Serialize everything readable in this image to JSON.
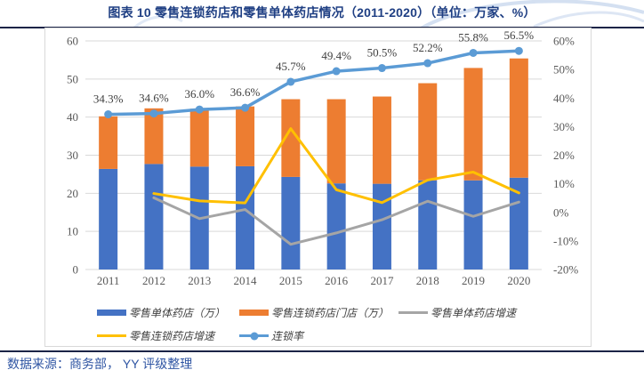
{
  "title": "图表 10 零售连锁药店和零售单体药店情况（2011-2020）（单位：万家、%）",
  "source": "数据来源：商务部， YY 评级整理",
  "colors": {
    "single_bar": "#4472C4",
    "chain_bar": "#ED7D31",
    "single_growth_line": "#A5A5A5",
    "chain_growth_line": "#FFC000",
    "chain_rate_line": "#5B9BD5",
    "gridline": "#D9D9D9",
    "axis_text": "#595959",
    "data_label": "#404040",
    "title_text": "#1F3F83",
    "rule": "#1B2447",
    "source_text": "#2F55A3"
  },
  "chart_data": {
    "type": "bar",
    "subtype": "stacked-bar-with-lines",
    "categories": [
      "2011",
      "2012",
      "2013",
      "2014",
      "2015",
      "2016",
      "2017",
      "2018",
      "2019",
      "2020"
    ],
    "series": [
      {
        "name": "零售单体药店（万）",
        "kind": "bar",
        "axis": "left",
        "color": "#4472C4",
        "values": [
          26.4,
          27.7,
          27.0,
          27.1,
          24.3,
          22.6,
          22.5,
          23.4,
          23.4,
          24.1
        ]
      },
      {
        "name": "零售连锁药店门店（万）",
        "kind": "bar",
        "axis": "left",
        "color": "#ED7D31",
        "values": [
          13.8,
          14.6,
          15.2,
          15.7,
          20.4,
          22.1,
          22.9,
          25.5,
          29.5,
          31.3
        ]
      },
      {
        "name": "零售单体药店增速",
        "kind": "line",
        "axis": "right",
        "color": "#A5A5A5",
        "values": [
          null,
          5.1,
          -2.2,
          1.0,
          -11.2,
          -7.2,
          -2.6,
          3.9,
          -1.4,
          3.6
        ]
      },
      {
        "name": "零售连锁药店增速",
        "kind": "line",
        "axis": "right",
        "color": "#FFC000",
        "values": [
          null,
          6.6,
          4.0,
          3.3,
          29.3,
          7.9,
          3.4,
          11.3,
          14.1,
          6.8
        ]
      },
      {
        "name": "连锁率",
        "kind": "line-marker",
        "axis": "right",
        "color": "#5B9BD5",
        "values": [
          34.3,
          34.6,
          36.0,
          36.6,
          45.7,
          49.4,
          50.5,
          52.2,
          55.8,
          56.5
        ],
        "labels": [
          "34.3%",
          "34.6%",
          "36.0%",
          "36.6%",
          "45.7%",
          "49.4%",
          "50.5%",
          "52.2%",
          "55.8%",
          "56.5%"
        ]
      }
    ],
    "left_axis": {
      "min": 0,
      "max": 60,
      "step": 10,
      "ticks": [
        "0",
        "10",
        "20",
        "30",
        "40",
        "50",
        "60"
      ]
    },
    "right_axis": {
      "min": -20,
      "max": 60,
      "step": 10,
      "ticks": [
        "-20%",
        "-10%",
        "0%",
        "10%",
        "20%",
        "30%",
        "40%",
        "50%",
        "60%"
      ]
    },
    "grid": true,
    "legend_position": "bottom",
    "legend_rows": [
      [
        {
          "label": "零售单体药店（万）",
          "swatch": "bar",
          "color": "#4472C4"
        },
        {
          "label": "零售连锁药店门店（万）",
          "swatch": "bar",
          "color": "#ED7D31"
        },
        {
          "label": "零售单体药店增速",
          "swatch": "line",
          "color": "#A5A5A5"
        }
      ],
      [
        {
          "label": "零售连锁药店增速",
          "swatch": "line",
          "color": "#FFC000"
        },
        {
          "label": "连锁率",
          "swatch": "line-marker",
          "color": "#5B9BD5"
        }
      ]
    ]
  }
}
